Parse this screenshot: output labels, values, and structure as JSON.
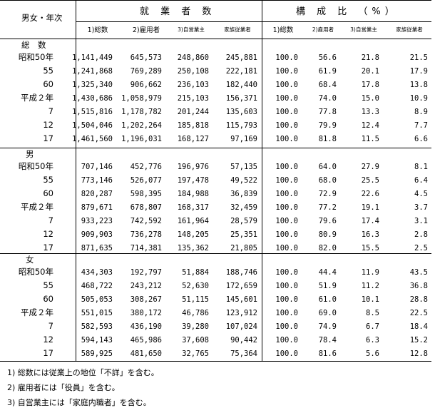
{
  "header": {
    "row_label": "男女・年次",
    "group_employed": "就 業 者 数",
    "group_ratio": "構 成 比 （%）",
    "cols": [
      "1)総数",
      "2)雇用者",
      "3)自営業主",
      "家族従業者",
      "1)総数",
      "2)雇用者",
      "3)自営業主",
      "家族従業者"
    ]
  },
  "sections": [
    {
      "title": "総　数",
      "rows": [
        {
          "label": "昭和50年",
          "cells": [
            "1,141,449",
            "645,573",
            "248,860",
            "245,881",
            "100.0",
            "56.6",
            "21.8",
            "21.5"
          ]
        },
        {
          "label": "55",
          "cells": [
            "1,241,868",
            "769,289",
            "250,108",
            "222,181",
            "100.0",
            "61.9",
            "20.1",
            "17.9"
          ]
        },
        {
          "label": "60",
          "cells": [
            "1,325,340",
            "906,662",
            "236,103",
            "182,440",
            "100.0",
            "68.4",
            "17.8",
            "13.8"
          ]
        },
        {
          "label": "平成２年",
          "cells": [
            "1,430,686",
            "1,058,979",
            "215,103",
            "156,371",
            "100.0",
            "74.0",
            "15.0",
            "10.9"
          ]
        },
        {
          "label": "7",
          "cells": [
            "1,515,816",
            "1,178,782",
            "201,244",
            "135,603",
            "100.0",
            "77.8",
            "13.3",
            "8.9"
          ]
        },
        {
          "label": "12",
          "cells": [
            "1,504,046",
            "1,202,264",
            "185,818",
            "115,793",
            "100.0",
            "79.9",
            "12.4",
            "7.7"
          ]
        },
        {
          "label": "17",
          "cells": [
            "1,461,560",
            "1,196,031",
            "168,127",
            "97,169",
            "100.0",
            "81.8",
            "11.5",
            "6.6"
          ]
        }
      ]
    },
    {
      "title": "男",
      "rows": [
        {
          "label": "昭和50年",
          "cells": [
            "707,146",
            "452,776",
            "196,976",
            "57,135",
            "100.0",
            "64.0",
            "27.9",
            "8.1"
          ]
        },
        {
          "label": "55",
          "cells": [
            "773,146",
            "526,077",
            "197,478",
            "49,522",
            "100.0",
            "68.0",
            "25.5",
            "6.4"
          ]
        },
        {
          "label": "60",
          "cells": [
            "820,287",
            "598,395",
            "184,988",
            "36,839",
            "100.0",
            "72.9",
            "22.6",
            "4.5"
          ]
        },
        {
          "label": "平成２年",
          "cells": [
            "879,671",
            "678,807",
            "168,317",
            "32,459",
            "100.0",
            "77.2",
            "19.1",
            "3.7"
          ]
        },
        {
          "label": "7",
          "cells": [
            "933,223",
            "742,592",
            "161,964",
            "28,579",
            "100.0",
            "79.6",
            "17.4",
            "3.1"
          ]
        },
        {
          "label": "12",
          "cells": [
            "909,903",
            "736,278",
            "148,205",
            "25,351",
            "100.0",
            "80.9",
            "16.3",
            "2.8"
          ]
        },
        {
          "label": "17",
          "cells": [
            "871,635",
            "714,381",
            "135,362",
            "21,805",
            "100.0",
            "82.0",
            "15.5",
            "2.5"
          ]
        }
      ]
    },
    {
      "title": "女",
      "rows": [
        {
          "label": "昭和50年",
          "cells": [
            "434,303",
            "192,797",
            "51,884",
            "188,746",
            "100.0",
            "44.4",
            "11.9",
            "43.5"
          ]
        },
        {
          "label": "55",
          "cells": [
            "468,722",
            "243,212",
            "52,630",
            "172,659",
            "100.0",
            "51.9",
            "11.2",
            "36.8"
          ]
        },
        {
          "label": "60",
          "cells": [
            "505,053",
            "308,267",
            "51,115",
            "145,601",
            "100.0",
            "61.0",
            "10.1",
            "28.8"
          ]
        },
        {
          "label": "平成２年",
          "cells": [
            "551,015",
            "380,172",
            "46,786",
            "123,912",
            "100.0",
            "69.0",
            "8.5",
            "22.5"
          ]
        },
        {
          "label": "7",
          "cells": [
            "582,593",
            "436,190",
            "39,280",
            "107,024",
            "100.0",
            "74.9",
            "6.7",
            "18.4"
          ]
        },
        {
          "label": "12",
          "cells": [
            "594,143",
            "465,986",
            "37,608",
            "90,442",
            "100.0",
            "78.4",
            "6.3",
            "15.2"
          ]
        },
        {
          "label": "17",
          "cells": [
            "589,925",
            "481,650",
            "32,765",
            "75,364",
            "100.0",
            "81.6",
            "5.6",
            "12.8"
          ]
        }
      ]
    }
  ],
  "notes": [
    "1) 総数には従業上の地位「不詳」を含む。",
    "2) 雇用者には「役員」を含む。",
    "3) 自営業主には「家庭内職者」を含む。"
  ]
}
